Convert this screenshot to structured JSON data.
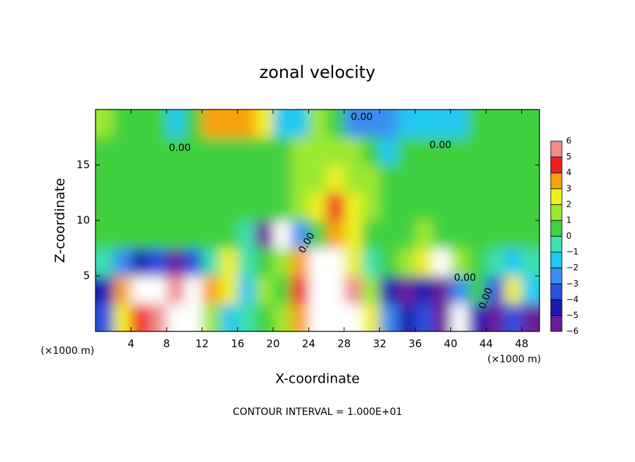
{
  "chart_data": {
    "type": "contourf",
    "title": "zonal velocity",
    "x_label": "X-coordinate",
    "y_label": "Z-coordinate",
    "x_unit": "(×1000 m)",
    "y_unit": "(×1000 m)",
    "footer": "CONTOUR INTERVAL = 1.000E+01",
    "annotations": [
      "0.00",
      "0.00",
      "0.00",
      "0.00",
      "0.00",
      "0.00"
    ],
    "xlim": [
      0,
      50
    ],
    "ylim": [
      0,
      20
    ],
    "xticks": [
      4,
      8,
      12,
      16,
      20,
      24,
      28,
      32,
      36,
      40,
      44,
      48
    ],
    "yticks": [
      5,
      10,
      15
    ],
    "x": [
      1,
      3,
      5,
      7,
      9,
      11,
      13,
      15,
      17,
      19,
      21,
      23,
      25,
      27,
      29,
      31,
      33,
      35,
      37,
      39,
      41,
      43,
      45,
      47,
      49
    ],
    "y": [
      1.25,
      3.75,
      6.25,
      8.75,
      11.25,
      13.75,
      16.25,
      18.75
    ],
    "z": [
      [
        -3,
        3,
        5,
        6,
        7,
        7,
        2,
        -1,
        0,
        1,
        2,
        4,
        8,
        8,
        7,
        3,
        -2,
        -4,
        -3,
        -6,
        -8,
        -4,
        -5,
        -3,
        -5
      ],
      [
        -4,
        4,
        8,
        8,
        6,
        7,
        4,
        3,
        -1,
        2,
        1,
        5,
        8,
        8,
        6,
        2,
        -4,
        -6,
        -4,
        -5,
        -2,
        1,
        -3,
        3,
        -1
      ],
      [
        0,
        -2,
        -4,
        -3,
        -5,
        -3,
        0,
        3,
        0,
        1,
        2,
        4,
        8,
        7,
        3,
        0,
        1,
        2,
        3,
        7,
        2,
        1,
        0,
        -1,
        0
      ],
      [
        0.5,
        0.5,
        0.5,
        0.5,
        0.5,
        0.5,
        0.5,
        0.5,
        0,
        -5,
        -8,
        -2,
        1,
        4,
        3,
        1,
        0.5,
        1,
        2,
        0.5,
        0.5,
        0.5,
        0.5,
        0.5,
        0.5
      ],
      [
        0.5,
        0.5,
        0.5,
        0.5,
        0.5,
        0.5,
        1,
        1,
        1,
        0.5,
        1,
        1.5,
        3,
        5,
        3,
        1.5,
        1,
        0.5,
        0.5,
        0.5,
        0.5,
        0.5,
        0.5,
        0.5,
        0.5
      ],
      [
        1,
        1,
        1,
        1,
        1,
        1,
        1,
        1,
        1,
        1,
        1,
        1.5,
        2,
        3,
        2,
        1.5,
        1,
        1,
        1,
        1,
        1,
        1,
        1,
        1,
        1
      ],
      [
        0.5,
        0.5,
        0.5,
        0.5,
        0.5,
        0.5,
        0.5,
        0.5,
        0.5,
        0.5,
        1,
        1.5,
        2,
        2,
        1.5,
        1,
        -1,
        0.5,
        0.5,
        0.5,
        0.5,
        0.5,
        0.5,
        0.5,
        0.5
      ],
      [
        2,
        1,
        0.5,
        0.5,
        -1,
        0.5,
        4,
        4,
        4,
        3,
        -1,
        -1,
        2,
        1,
        -2,
        -2,
        -2,
        -1,
        -1,
        -1,
        -1,
        1,
        0.5,
        0.5,
        0.5
      ]
    ],
    "levels": [
      {
        "value": -6,
        "label": "−6"
      },
      {
        "value": -5,
        "label": "−5"
      },
      {
        "value": -4,
        "label": "−4"
      },
      {
        "value": -3,
        "label": "−3"
      },
      {
        "value": -2,
        "label": "−2"
      },
      {
        "value": -1,
        "label": "−1"
      },
      0,
      1,
      2,
      3,
      4,
      5,
      6
    ],
    "colors": [
      "#6a1b9a",
      "#1a1ab0",
      "#2b4fe0",
      "#3a8ef0",
      "#22c8f0",
      "#3ee0b0",
      "#40d040",
      "#9be830",
      "#f0f020",
      "#f8a010",
      "#f02020",
      "#f08c8c"
    ],
    "out_of_range_color": "#ffffff"
  }
}
